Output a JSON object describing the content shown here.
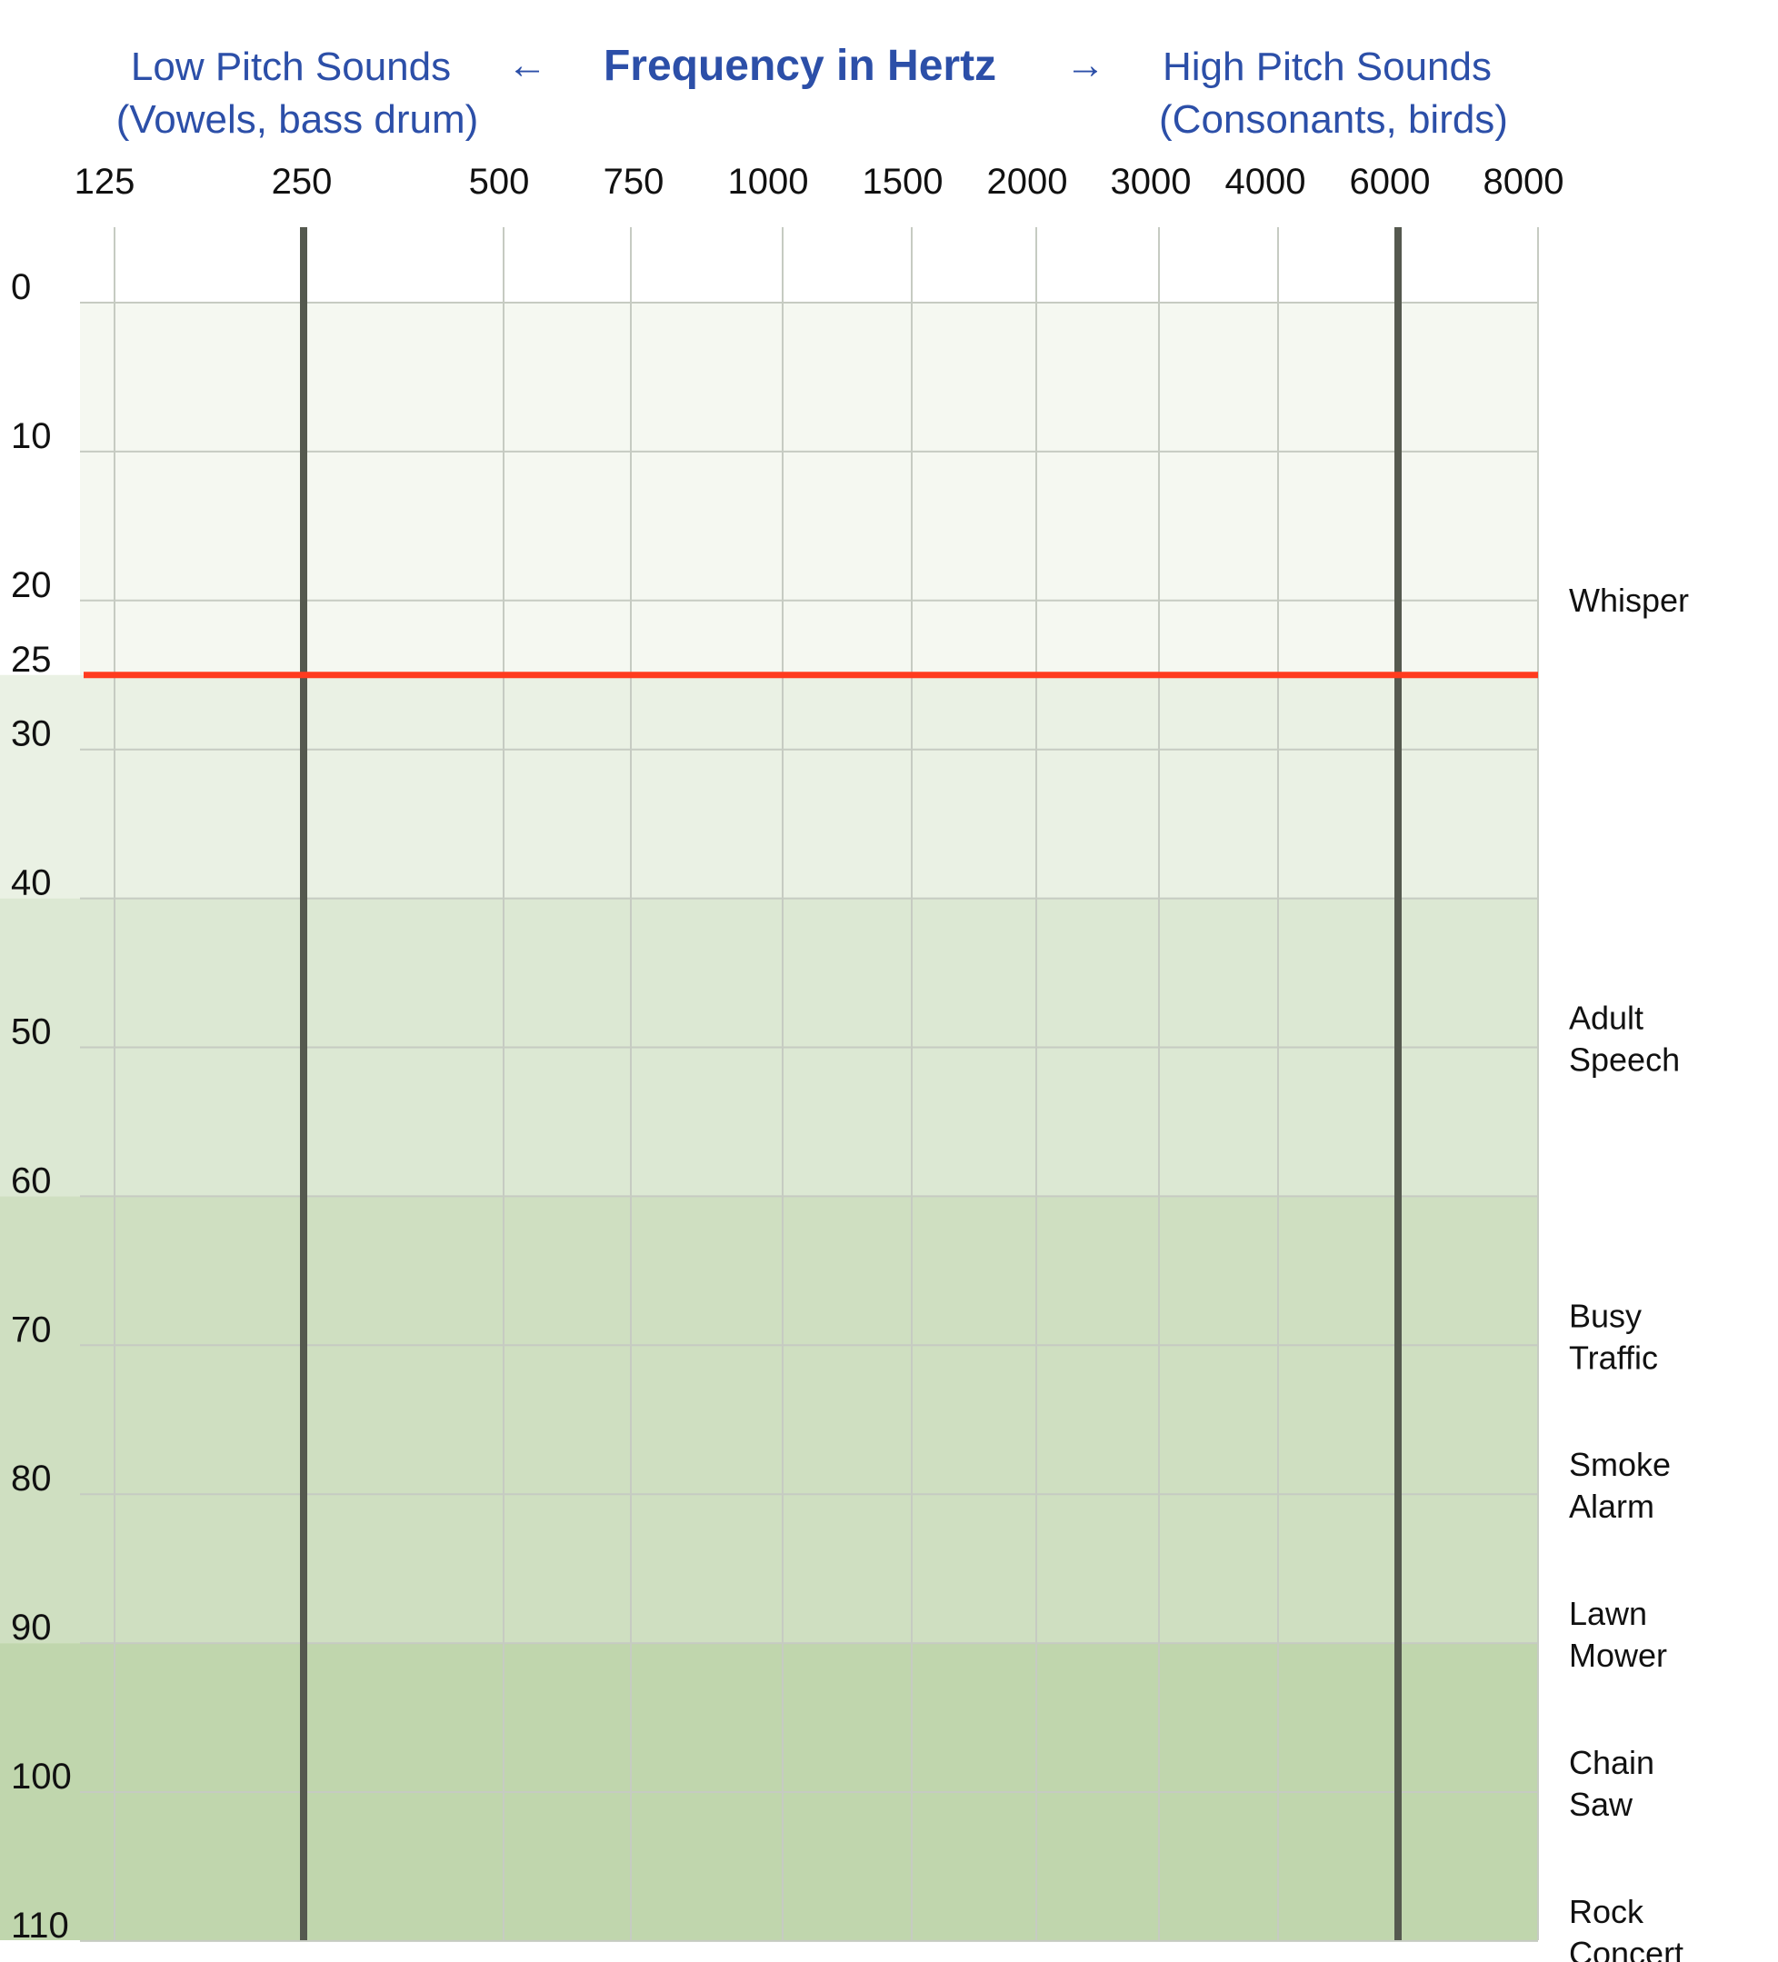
{
  "header": {
    "center": "Frequency in Hertz",
    "left_line1": "Low Pitch Sounds",
    "left_line2": "(Vowels, bass drum)",
    "right_line1": "High Pitch Sounds",
    "right_line2": "(Consonants, birds)",
    "arrow_left": "←",
    "arrow_right": "→"
  },
  "chart_data": {
    "type": "line",
    "title": "Frequency in Hertz",
    "x_ticks": [
      "125",
      "250",
      "500",
      "750",
      "1000",
      "1500",
      "2000",
      "3000",
      "4000",
      "6000",
      "8000"
    ],
    "y_ticks": [
      "0",
      "10",
      "20",
      "25",
      "30",
      "40",
      "50",
      "60",
      "70",
      "80",
      "90",
      "100",
      "110"
    ],
    "ylim": [
      0,
      110
    ],
    "y_inverted": true,
    "grid": true,
    "highlighted_frequencies": [
      250,
      6000
    ],
    "threshold_line": {
      "y": 25,
      "color": "#ff3b1f"
    },
    "shaded_bands": [
      {
        "from": 0,
        "to": 25,
        "color": "#f5f8f1"
      },
      {
        "from": 25,
        "to": 40,
        "color": "#eaf1e4"
      },
      {
        "from": 40,
        "to": 60,
        "color": "#dce8d3"
      },
      {
        "from": 60,
        "to": 90,
        "color": "#cfdfc1"
      },
      {
        "from": 90,
        "to": 110,
        "color": "#c0d6ad"
      }
    ],
    "reference_sounds": [
      {
        "lines": [
          "Whisper"
        ],
        "y": 20
      },
      {
        "lines": [
          "Adult",
          "Speech"
        ],
        "y": 50
      },
      {
        "lines": [
          "Busy",
          "Traffic"
        ],
        "y": 70
      },
      {
        "lines": [
          "Smoke",
          "Alarm"
        ],
        "y": 80
      },
      {
        "lines": [
          "Lawn",
          "Mower"
        ],
        "y": 90
      },
      {
        "lines": [
          "Chain",
          "Saw"
        ],
        "y": 100
      },
      {
        "lines": [
          "Rock",
          "Concert"
        ],
        "y": 110
      }
    ]
  }
}
